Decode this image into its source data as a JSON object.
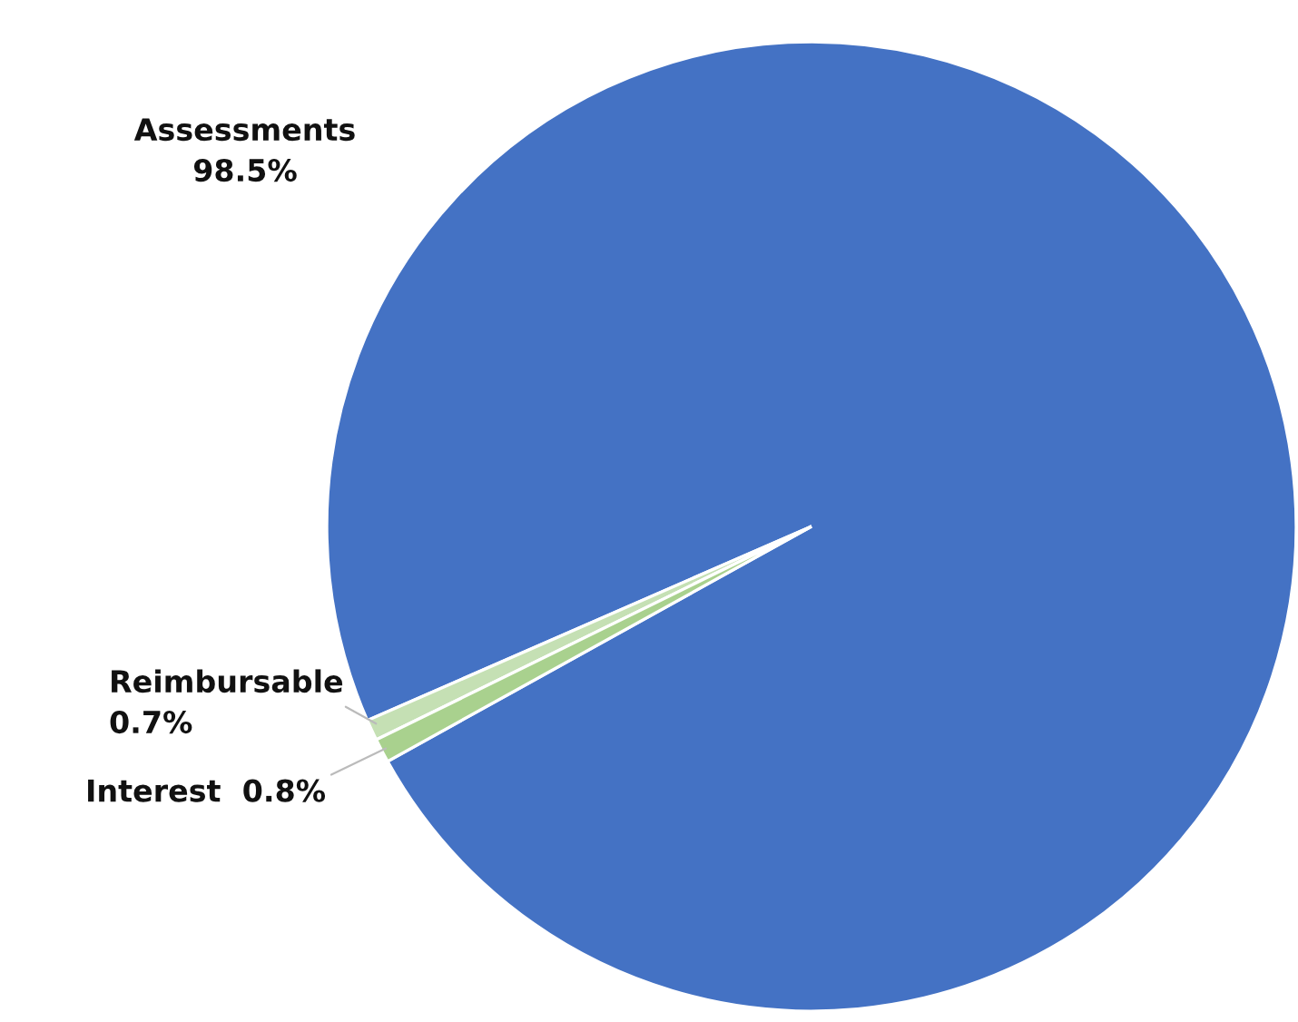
{
  "chart_data": {
    "type": "pie",
    "categories": [
      "Assessments",
      "Reimbursable",
      "Interest"
    ],
    "values": [
      98.5,
      0.7,
      0.8
    ],
    "colors": [
      "#4472c4",
      "#c5e0b4",
      "#a9d18e"
    ],
    "value_labels": [
      "98.5%",
      "0.7%",
      "0.8%"
    ]
  }
}
